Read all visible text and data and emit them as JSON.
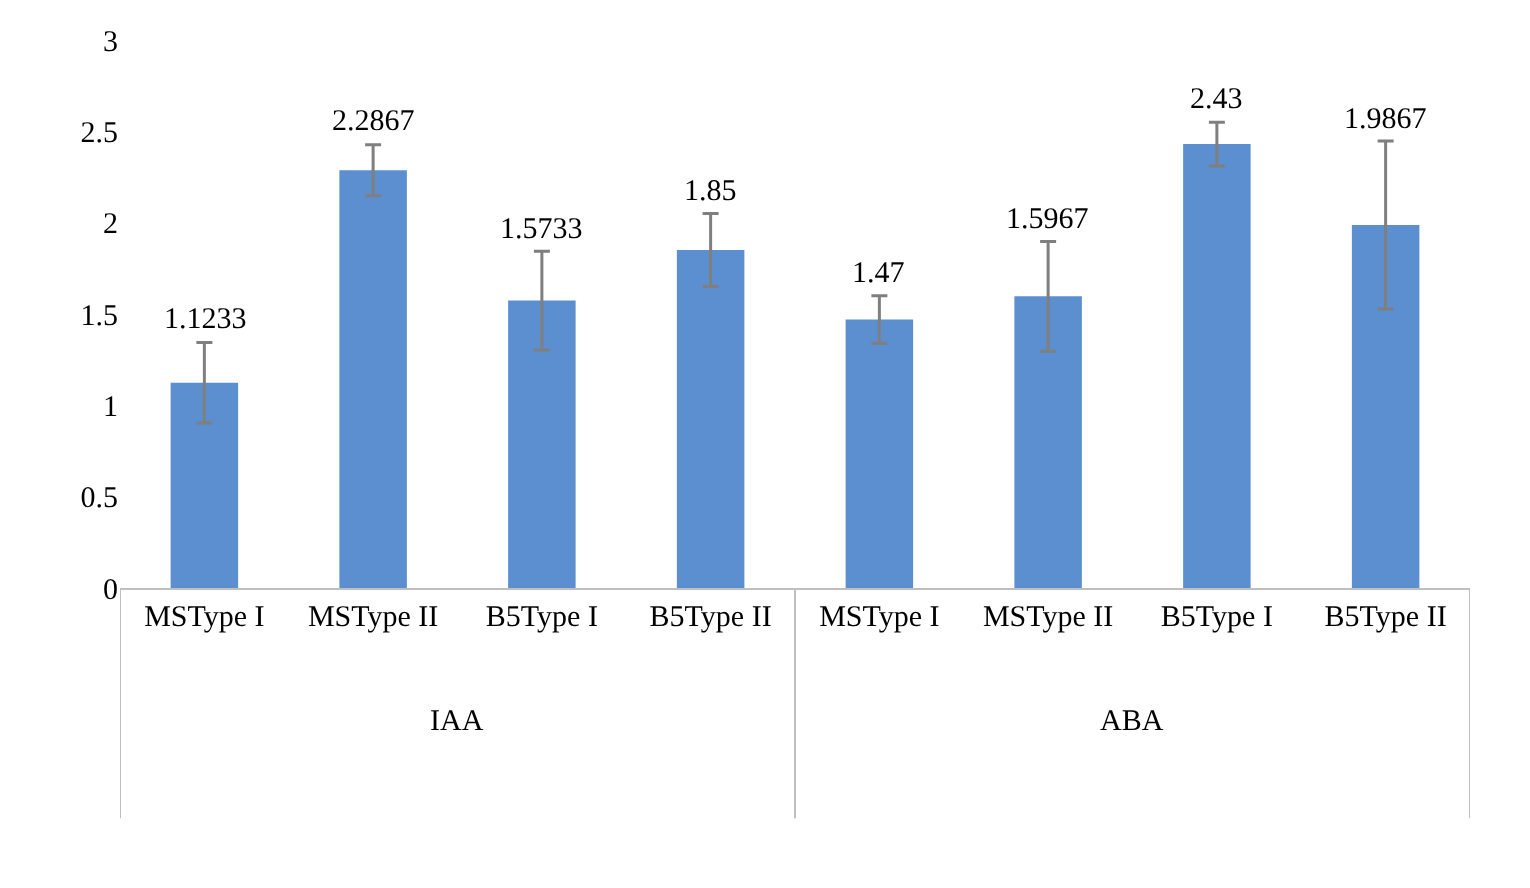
{
  "chart_data": {
    "type": "bar",
    "categories": [
      "MSType I",
      "MSType II",
      "B5Type I",
      "B5Type II",
      "MSType I",
      "MSType II",
      "B5Type I",
      "B5Type II"
    ],
    "values": [
      1.1233,
      2.2867,
      1.5733,
      1.85,
      1.47,
      1.5967,
      2.43,
      1.9867
    ],
    "errors": [
      0.22,
      0.14,
      0.27,
      0.2,
      0.13,
      0.3,
      0.12,
      0.46
    ],
    "color": "#5b8fd0",
    "data_labels": true,
    "annotations": [
      "IAA",
      "ABA"
    ],
    "ylim": [
      0,
      3
    ],
    "yticks": [
      0,
      0.5,
      1,
      1.5,
      2,
      2.5,
      3
    ]
  }
}
